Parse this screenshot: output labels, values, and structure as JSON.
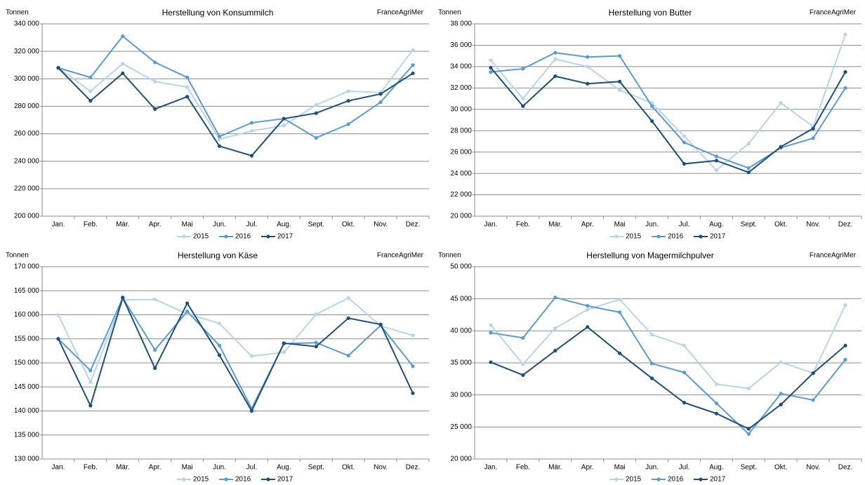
{
  "chart_data": [
    {
      "type": "line",
      "title": "Herstellung von Konsummilch",
      "y_label": "Tonnen",
      "source": "FranceAgriMer",
      "categories": [
        "Jan.",
        "Feb.",
        "Mär.",
        "Apr.",
        "Mai",
        "Jun.",
        "Jul.",
        "Aug.",
        "Sept.",
        "Okt.",
        "Nov.",
        "Dez."
      ],
      "series": [
        {
          "name": "2015",
          "color": "#b9d4ea",
          "values": [
            308000,
            291000,
            311000,
            298000,
            294000,
            256000,
            262000,
            266000,
            281000,
            291000,
            290000,
            321000
          ]
        },
        {
          "name": "2016",
          "color": "#5b9bd0",
          "values": [
            308000,
            301000,
            331000,
            312000,
            301000,
            258000,
            268000,
            271000,
            257000,
            267000,
            283000,
            310000
          ]
        },
        {
          "name": "2017",
          "color": "#1f4e79",
          "values": [
            308000,
            284000,
            304000,
            278000,
            287000,
            251000,
            244000,
            271000,
            275000,
            284000,
            289000,
            304000
          ]
        }
      ],
      "ylim": [
        200000,
        340000
      ],
      "yticks": [
        {
          "value": 200000,
          "label": "200 000"
        },
        {
          "value": 220000,
          "label": "220 000"
        },
        {
          "value": 240000,
          "label": "240 000"
        },
        {
          "value": 260000,
          "label": "260 000"
        },
        {
          "value": 280000,
          "label": "280 000"
        },
        {
          "value": 300000,
          "label": "300 000"
        },
        {
          "value": 320000,
          "label": "320 000"
        },
        {
          "value": 340000,
          "label": "340 000"
        }
      ],
      "grid": true
    },
    {
      "type": "line",
      "title": "Herstellung von Butter",
      "y_label": "Tonnen",
      "source": "FranceAgriMer",
      "categories": [
        "Jan.",
        "Feb.",
        "Mär.",
        "Apr.",
        "Mai",
        "Jun.",
        "Jul.",
        "Aug.",
        "Sept.",
        "Okt.",
        "Nov.",
        "Dez."
      ],
      "series": [
        {
          "name": "2015",
          "color": "#b9d4ea",
          "values": [
            34600,
            31000,
            34700,
            34000,
            31800,
            30600,
            27500,
            24300,
            26800,
            30600,
            28400,
            37000
          ]
        },
        {
          "name": "2016",
          "color": "#5b9bd0",
          "values": [
            33500,
            33800,
            35300,
            34900,
            35000,
            30300,
            26900,
            25600,
            24500,
            26400,
            27300,
            32000
          ]
        },
        {
          "name": "2017",
          "color": "#1f4e79",
          "values": [
            33900,
            30300,
            33100,
            32400,
            32600,
            28900,
            24900,
            25200,
            24100,
            26500,
            28200,
            33500
          ]
        }
      ],
      "ylim": [
        20000,
        38000
      ],
      "yticks": [
        {
          "value": 20000,
          "label": "20 000"
        },
        {
          "value": 22000,
          "label": "22 000"
        },
        {
          "value": 24000,
          "label": "24 000"
        },
        {
          "value": 26000,
          "label": "26 000"
        },
        {
          "value": 28000,
          "label": "28 000"
        },
        {
          "value": 30000,
          "label": "30 000"
        },
        {
          "value": 32000,
          "label": "32 000"
        },
        {
          "value": 34000,
          "label": "34 000"
        },
        {
          "value": 36000,
          "label": "36 000"
        },
        {
          "value": 38000,
          "label": "38 000"
        }
      ],
      "grid": true
    },
    {
      "type": "line",
      "title": "Herstellung von Käse",
      "y_label": "Tonnen",
      "source": "FranceAgriMer",
      "categories": [
        "Jan.",
        "Feb.",
        "Mär.",
        "Apr.",
        "Mai",
        "Jun.",
        "Jul.",
        "Aug.",
        "Sept.",
        "Okt.",
        "Nov.",
        "Dez."
      ],
      "series": [
        {
          "name": "2015",
          "color": "#b9d4ea",
          "values": [
            160000,
            146000,
            163100,
            163200,
            160200,
            158200,
            151400,
            152200,
            160100,
            163500,
            157700,
            155700
          ]
        },
        {
          "name": "2016",
          "color": "#5b9bd0",
          "values": [
            155000,
            148400,
            163500,
            152700,
            160700,
            153600,
            140500,
            154000,
            154200,
            151500,
            157800,
            149300
          ]
        },
        {
          "name": "2017",
          "color": "#1f4e79",
          "values": [
            155000,
            141100,
            163600,
            148900,
            162400,
            151600,
            140000,
            154100,
            153400,
            159300,
            158000,
            143700
          ]
        }
      ],
      "ylim": [
        130000,
        170000
      ],
      "yticks": [
        {
          "value": 130000,
          "label": "130 000"
        },
        {
          "value": 135000,
          "label": "135 000"
        },
        {
          "value": 140000,
          "label": "140 000"
        },
        {
          "value": 145000,
          "label": "145 000"
        },
        {
          "value": 150000,
          "label": "150 000"
        },
        {
          "value": 155000,
          "label": "155 000"
        },
        {
          "value": 160000,
          "label": "160 000"
        },
        {
          "value": 165000,
          "label": "165 000"
        },
        {
          "value": 170000,
          "label": "170 000"
        }
      ],
      "grid": true
    },
    {
      "type": "line",
      "title": "Herstellung von Magermilchpulver",
      "y_label": "Tonnen",
      "source": "FranceAgriMer",
      "categories": [
        "Jan.",
        "Feb.",
        "Mär.",
        "Apr.",
        "Mai",
        "Jun.",
        "Jul.",
        "Aug.",
        "Sept.",
        "Okt.",
        "Nov.",
        "Dez."
      ],
      "series": [
        {
          "name": "2015",
          "color": "#b9d4ea",
          "values": [
            40900,
            34800,
            40400,
            43300,
            44900,
            39400,
            37700,
            31700,
            31000,
            35100,
            33400,
            44000
          ]
        },
        {
          "name": "2016",
          "color": "#5b9bd0",
          "values": [
            39700,
            38900,
            45200,
            43900,
            42900,
            34900,
            33500,
            28700,
            23900,
            30200,
            29200,
            35500
          ]
        },
        {
          "name": "2017",
          "color": "#1f4e79",
          "values": [
            35100,
            33100,
            36900,
            40600,
            36500,
            32600,
            28800,
            27100,
            24700,
            28500,
            33400,
            37700
          ]
        }
      ],
      "ylim": [
        20000,
        50000
      ],
      "yticks": [
        {
          "value": 20000,
          "label": "20 000"
        },
        {
          "value": 25000,
          "label": "25 000"
        },
        {
          "value": 30000,
          "label": "30 000"
        },
        {
          "value": 35000,
          "label": "35 000"
        },
        {
          "value": 40000,
          "label": "40 000"
        },
        {
          "value": 45000,
          "label": "45 000"
        },
        {
          "value": 50000,
          "label": "50 000"
        }
      ],
      "grid": true
    }
  ]
}
